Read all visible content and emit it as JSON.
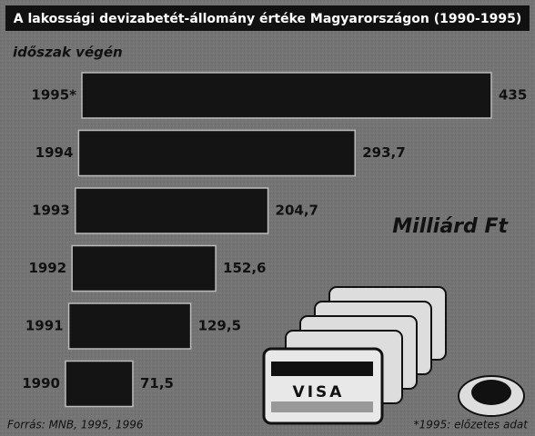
{
  "chart_data": {
    "type": "bar",
    "orientation": "horizontal",
    "title": "A lakossági devizabetét-állomány értéke Magyarországon (1990-1995)",
    "subtitle": "időszak végén",
    "unit": "Milliárd Ft",
    "source": "Forrás: MNB, 1995, 1996",
    "note": "*1995: előzetes adat",
    "card_label": "VISA",
    "categories": [
      "1995*",
      "1994",
      "1993",
      "1992",
      "1991",
      "1990"
    ],
    "values": [
      435,
      293.7,
      204.7,
      152.6,
      129.5,
      71.5
    ],
    "value_labels": [
      "435",
      "293,7",
      "204,7",
      "152,6",
      "129,5",
      "71,5"
    ],
    "color": "#141414"
  }
}
